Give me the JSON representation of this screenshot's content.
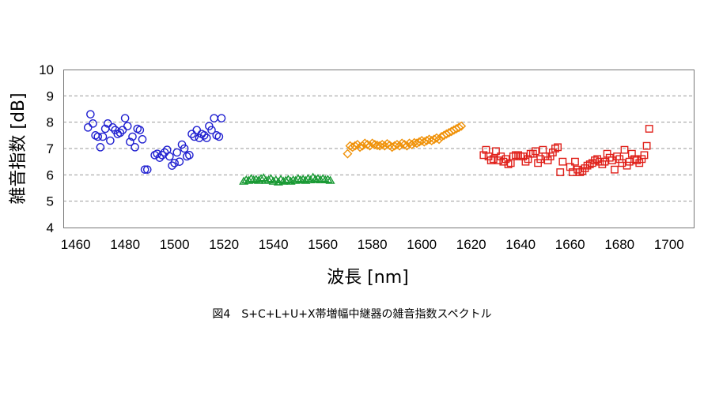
{
  "caption": "図4　S+C+L+U+X帯増幅中継器の雑音指数スペクトル",
  "chart_data": {
    "type": "scatter",
    "xlabel": "波長 [nm]",
    "ylabel": "雑音指数 [dB]",
    "xlim": [
      1455,
      1710
    ],
    "ylim": [
      4,
      10
    ],
    "xticks": [
      1460,
      1480,
      1500,
      1520,
      1540,
      1560,
      1580,
      1600,
      1620,
      1640,
      1660,
      1680,
      1700
    ],
    "yticks": [
      4,
      5,
      6,
      7,
      8,
      9,
      10
    ],
    "grid": "horizontal dashed",
    "legend": "none",
    "series": [
      {
        "band": "S",
        "marker": "circle",
        "color": "#1f1fd0",
        "points": [
          [
            1465,
            7.8
          ],
          [
            1466,
            8.3
          ],
          [
            1467,
            7.95
          ],
          [
            1468,
            7.5
          ],
          [
            1469,
            7.45
          ],
          [
            1470,
            7.05
          ],
          [
            1471,
            7.45
          ],
          [
            1472,
            7.75
          ],
          [
            1473,
            7.95
          ],
          [
            1474,
            7.3
          ],
          [
            1475,
            7.8
          ],
          [
            1476,
            7.7
          ],
          [
            1477,
            7.55
          ],
          [
            1478,
            7.6
          ],
          [
            1479,
            7.7
          ],
          [
            1480,
            8.15
          ],
          [
            1481,
            7.85
          ],
          [
            1482,
            7.25
          ],
          [
            1483,
            7.45
          ],
          [
            1484,
            7.05
          ],
          [
            1485,
            7.75
          ],
          [
            1486,
            7.7
          ],
          [
            1487,
            7.35
          ],
          [
            1488,
            6.2
          ],
          [
            1489,
            6.2
          ],
          [
            1492,
            6.75
          ],
          [
            1493,
            6.8
          ],
          [
            1494,
            6.65
          ],
          [
            1495,
            6.75
          ],
          [
            1496,
            6.85
          ],
          [
            1497,
            6.95
          ],
          [
            1498,
            6.7
          ],
          [
            1499,
            6.35
          ],
          [
            1500,
            6.45
          ],
          [
            1501,
            6.85
          ],
          [
            1502,
            6.5
          ],
          [
            1503,
            7.15
          ],
          [
            1504,
            7.0
          ],
          [
            1505,
            6.7
          ],
          [
            1506,
            6.75
          ],
          [
            1507,
            7.55
          ],
          [
            1508,
            7.45
          ],
          [
            1509,
            7.7
          ],
          [
            1510,
            7.4
          ],
          [
            1511,
            7.55
          ],
          [
            1512,
            7.5
          ],
          [
            1513,
            7.4
          ],
          [
            1514,
            7.85
          ],
          [
            1515,
            7.7
          ],
          [
            1516,
            8.15
          ],
          [
            1517,
            7.5
          ],
          [
            1518,
            7.45
          ],
          [
            1519,
            8.15
          ]
        ]
      },
      {
        "band": "C",
        "marker": "triangle",
        "color": "#1a9a35",
        "points": [
          [
            1528,
            5.75
          ],
          [
            1529,
            5.8
          ],
          [
            1530,
            5.78
          ],
          [
            1531,
            5.85
          ],
          [
            1532,
            5.8
          ],
          [
            1533,
            5.82
          ],
          [
            1534,
            5.78
          ],
          [
            1535,
            5.85
          ],
          [
            1536,
            5.88
          ],
          [
            1537,
            5.78
          ],
          [
            1538,
            5.8
          ],
          [
            1539,
            5.85
          ],
          [
            1540,
            5.75
          ],
          [
            1541,
            5.8
          ],
          [
            1542,
            5.72
          ],
          [
            1543,
            5.82
          ],
          [
            1544,
            5.75
          ],
          [
            1545,
            5.78
          ],
          [
            1546,
            5.82
          ],
          [
            1547,
            5.75
          ],
          [
            1548,
            5.8
          ],
          [
            1549,
            5.78
          ],
          [
            1550,
            5.85
          ],
          [
            1551,
            5.8
          ],
          [
            1552,
            5.82
          ],
          [
            1553,
            5.78
          ],
          [
            1554,
            5.85
          ],
          [
            1555,
            5.8
          ],
          [
            1556,
            5.9
          ],
          [
            1557,
            5.82
          ],
          [
            1558,
            5.85
          ],
          [
            1559,
            5.8
          ],
          [
            1560,
            5.85
          ],
          [
            1561,
            5.8
          ],
          [
            1562,
            5.82
          ],
          [
            1563,
            5.78
          ]
        ]
      },
      {
        "band": "L",
        "marker": "diamond",
        "color": "#f0920a",
        "points": [
          [
            1570,
            6.8
          ],
          [
            1571,
            7.1
          ],
          [
            1572,
            7.05
          ],
          [
            1573,
            7.1
          ],
          [
            1574,
            7.15
          ],
          [
            1575,
            7.05
          ],
          [
            1576,
            7.1
          ],
          [
            1577,
            7.2
          ],
          [
            1578,
            7.15
          ],
          [
            1579,
            7.1
          ],
          [
            1580,
            7.2
          ],
          [
            1581,
            7.15
          ],
          [
            1582,
            7.12
          ],
          [
            1583,
            7.1
          ],
          [
            1584,
            7.15
          ],
          [
            1585,
            7.1
          ],
          [
            1586,
            7.18
          ],
          [
            1587,
            7.12
          ],
          [
            1588,
            7.05
          ],
          [
            1589,
            7.1
          ],
          [
            1590,
            7.15
          ],
          [
            1591,
            7.1
          ],
          [
            1592,
            7.2
          ],
          [
            1593,
            7.15
          ],
          [
            1594,
            7.1
          ],
          [
            1595,
            7.2
          ],
          [
            1596,
            7.15
          ],
          [
            1597,
            7.22
          ],
          [
            1598,
            7.2
          ],
          [
            1599,
            7.25
          ],
          [
            1600,
            7.3
          ],
          [
            1601,
            7.25
          ],
          [
            1602,
            7.3
          ],
          [
            1603,
            7.35
          ],
          [
            1604,
            7.3
          ],
          [
            1605,
            7.35
          ],
          [
            1606,
            7.4
          ],
          [
            1607,
            7.35
          ],
          [
            1608,
            7.45
          ],
          [
            1609,
            7.5
          ],
          [
            1610,
            7.55
          ],
          [
            1611,
            7.6
          ],
          [
            1612,
            7.65
          ],
          [
            1613,
            7.7
          ],
          [
            1614,
            7.75
          ],
          [
            1615,
            7.8
          ],
          [
            1616,
            7.85
          ]
        ]
      },
      {
        "band": "U+X",
        "marker": "square",
        "color": "#e0201a",
        "points": [
          [
            1625,
            6.75
          ],
          [
            1626,
            6.95
          ],
          [
            1627,
            6.7
          ],
          [
            1628,
            6.55
          ],
          [
            1629,
            6.6
          ],
          [
            1630,
            6.9
          ],
          [
            1631,
            6.55
          ],
          [
            1632,
            6.7
          ],
          [
            1633,
            6.5
          ],
          [
            1634,
            6.6
          ],
          [
            1635,
            6.4
          ],
          [
            1636,
            6.45
          ],
          [
            1637,
            6.7
          ],
          [
            1638,
            6.75
          ],
          [
            1639,
            6.75
          ],
          [
            1640,
            6.7
          ],
          [
            1641,
            6.7
          ],
          [
            1642,
            6.5
          ],
          [
            1643,
            6.6
          ],
          [
            1644,
            6.8
          ],
          [
            1645,
            6.8
          ],
          [
            1646,
            6.9
          ],
          [
            1647,
            6.45
          ],
          [
            1648,
            6.6
          ],
          [
            1649,
            6.95
          ],
          [
            1650,
            6.7
          ],
          [
            1651,
            6.55
          ],
          [
            1652,
            6.7
          ],
          [
            1653,
            6.85
          ],
          [
            1654,
            7.0
          ],
          [
            1655,
            7.05
          ],
          [
            1656,
            6.1
          ],
          [
            1657,
            6.5
          ],
          [
            1660,
            6.3
          ],
          [
            1661,
            6.1
          ],
          [
            1662,
            6.5
          ],
          [
            1663,
            6.2
          ],
          [
            1664,
            6.1
          ],
          [
            1665,
            6.15
          ],
          [
            1666,
            6.25
          ],
          [
            1667,
            6.35
          ],
          [
            1668,
            6.4
          ],
          [
            1669,
            6.45
          ],
          [
            1670,
            6.55
          ],
          [
            1671,
            6.6
          ],
          [
            1672,
            6.5
          ],
          [
            1673,
            6.4
          ],
          [
            1674,
            6.5
          ],
          [
            1675,
            6.8
          ],
          [
            1676,
            6.65
          ],
          [
            1677,
            6.55
          ],
          [
            1678,
            6.2
          ],
          [
            1679,
            6.7
          ],
          [
            1680,
            6.6
          ],
          [
            1681,
            6.45
          ],
          [
            1682,
            6.95
          ],
          [
            1683,
            6.35
          ],
          [
            1684,
            6.5
          ],
          [
            1685,
            6.8
          ],
          [
            1686,
            6.6
          ],
          [
            1687,
            6.55
          ],
          [
            1688,
            6.45
          ],
          [
            1689,
            6.6
          ],
          [
            1690,
            6.75
          ],
          [
            1691,
            7.1
          ],
          [
            1692,
            7.75
          ]
        ]
      }
    ]
  }
}
